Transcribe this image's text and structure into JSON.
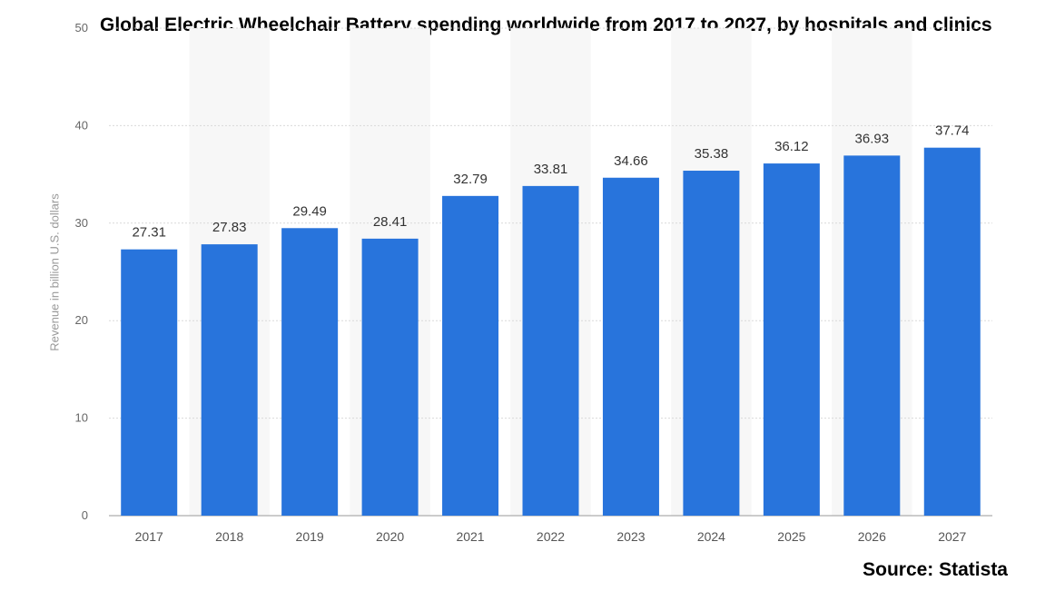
{
  "chart_data": {
    "type": "bar",
    "title": "Global Electric Wheelchair Battery spending worldwide from 2017 to 2027, by hospitals and clinics",
    "ylabel": "Revenue in billion U.S. dollars",
    "xlabel": "",
    "categories": [
      "2017",
      "2018",
      "2019",
      "2020",
      "2021",
      "2022",
      "2023",
      "2024",
      "2025",
      "2026",
      "2027"
    ],
    "values": [
      27.31,
      27.83,
      29.49,
      28.41,
      32.79,
      33.81,
      34.66,
      35.38,
      36.12,
      36.93,
      37.74
    ],
    "value_labels": [
      "27.31",
      "27.83",
      "29.49",
      "28.41",
      "32.79",
      "33.81",
      "34.66",
      "35.38",
      "36.12",
      "36.93",
      "37.74"
    ],
    "ylim": [
      0,
      50
    ],
    "yticks": [
      "0",
      "10",
      "20",
      "30",
      "40",
      "50"
    ],
    "grid": true,
    "bar_color": "#2874dc"
  },
  "source": "Source: Statista"
}
